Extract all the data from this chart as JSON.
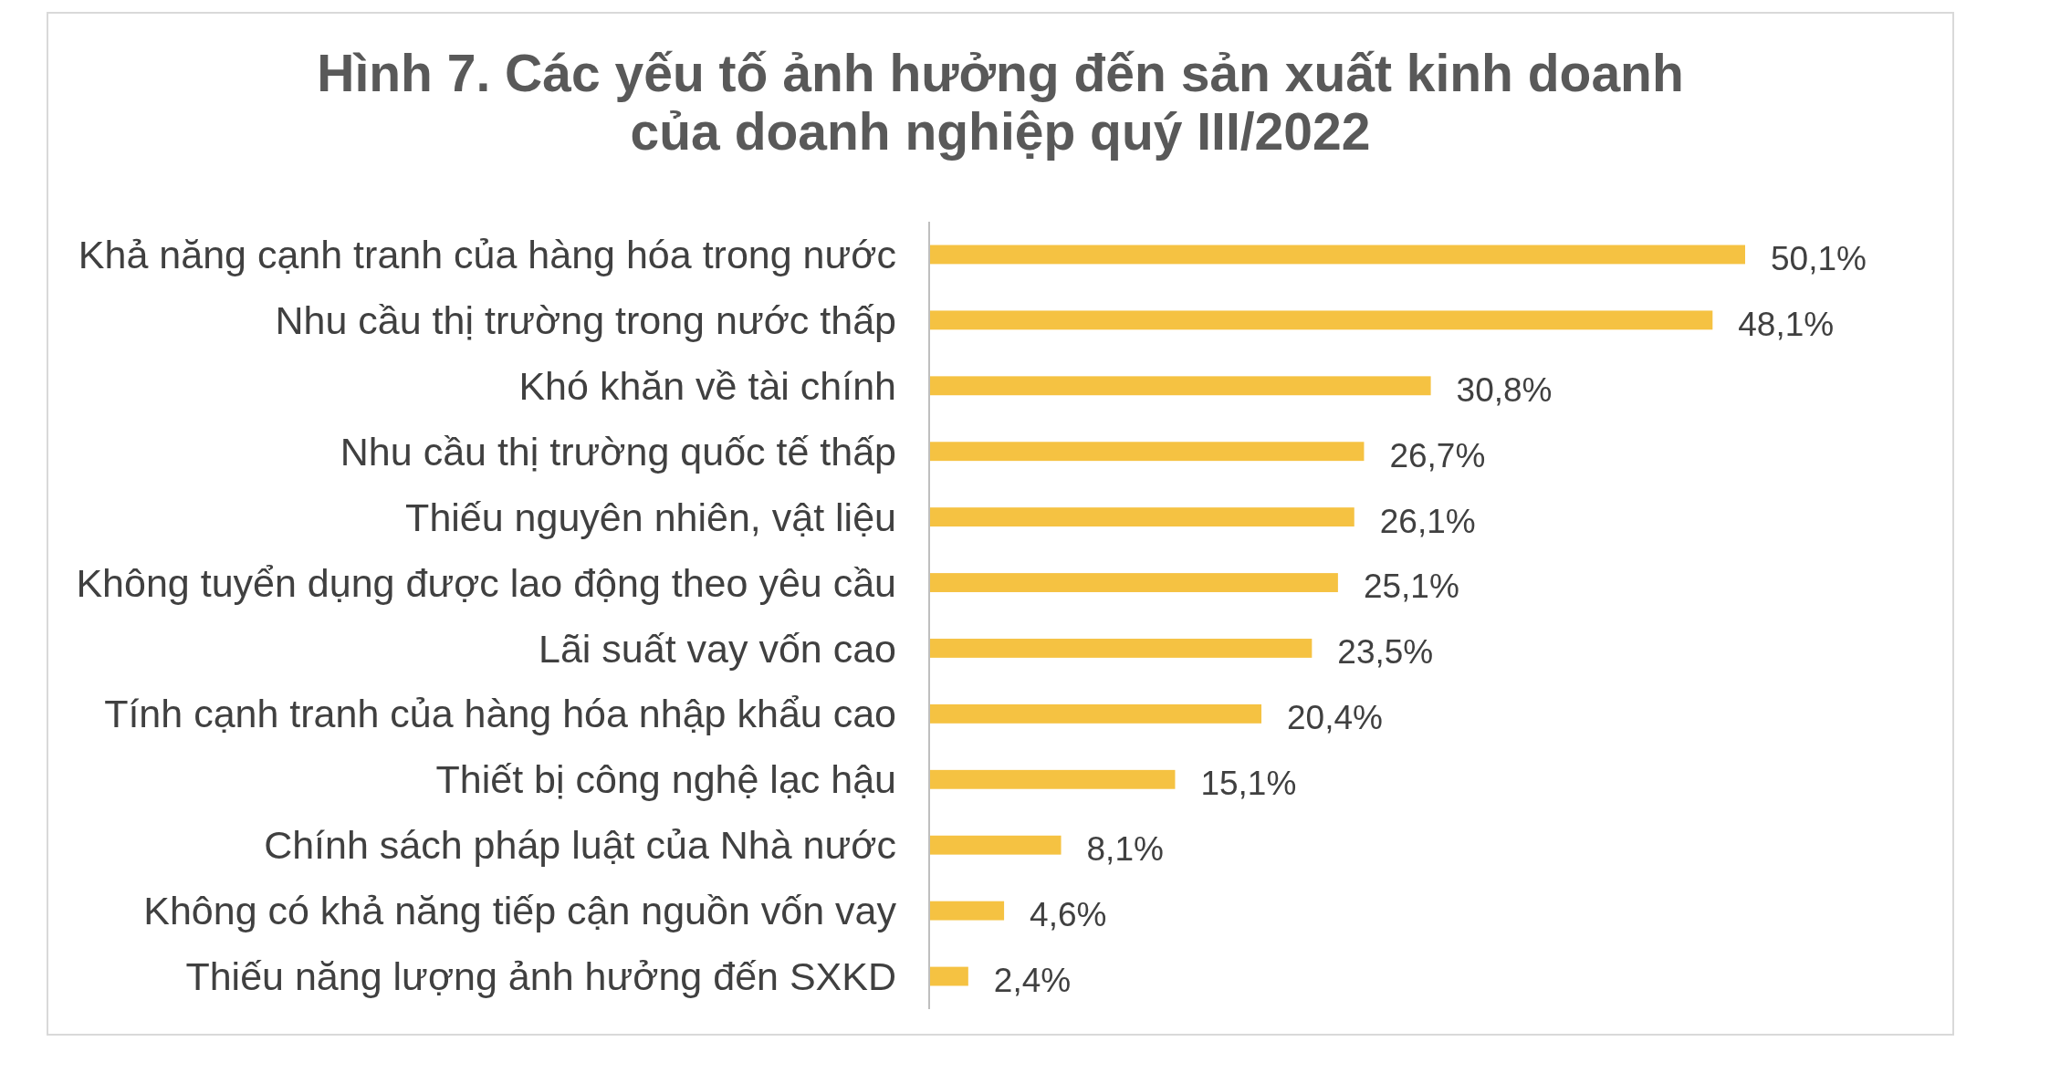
{
  "chart_data": {
    "type": "bar",
    "orientation": "horizontal",
    "title": "Hình 7. Các yếu tố ảnh hưởng đến sản xuất kinh doanh\ncủa doanh nghiệp quý III/2022",
    "categories": [
      "Khả năng cạnh tranh của hàng hóa trong nước",
      "Nhu cầu thị trường trong nước thấp",
      "Khó khăn về tài chính",
      "Nhu cầu thị trường quốc tế thấp",
      "Thiếu nguyên nhiên, vật liệu",
      "Không tuyển dụng được lao động theo yêu cầu",
      "Lãi suất vay vốn cao",
      "Tính cạnh tranh của hàng hóa nhập khẩu cao",
      "Thiết bị công nghệ lạc hậu",
      "Chính sách pháp luật của Nhà nước",
      "Không có khả năng tiếp cận nguồn vốn vay",
      "Thiếu năng lượng ảnh hưởng đến SXKD"
    ],
    "values": [
      50.1,
      48.1,
      30.8,
      26.7,
      26.1,
      25.1,
      23.5,
      20.4,
      15.1,
      8.1,
      4.6,
      2.4
    ],
    "value_labels": [
      "50,1%",
      "48,1%",
      "30,8%",
      "26,7%",
      "26,1%",
      "25,1%",
      "23,5%",
      "20,4%",
      "15,1%",
      "8,1%",
      "4,6%",
      "2,4%"
    ],
    "color": "#f5c242"
  }
}
